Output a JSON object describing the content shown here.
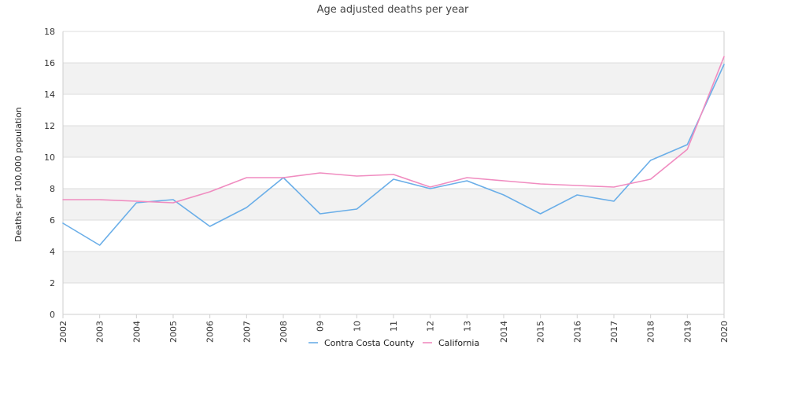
{
  "chart_data": {
    "type": "line",
    "title": "Age adjusted deaths per year",
    "ylabel": "Deaths per 100,000 population",
    "xlabel": "",
    "x": [
      "2002",
      "2003",
      "2004",
      "2005",
      "2006",
      "2007",
      "2008",
      "09",
      "10",
      "11",
      "12",
      "13",
      "2014",
      "2015",
      "2016",
      "2017",
      "2018",
      "2019",
      "2020"
    ],
    "ylim": [
      0,
      18
    ],
    "yticks": [
      0,
      2,
      4,
      6,
      8,
      10,
      12,
      14,
      16,
      18
    ],
    "grid": true,
    "legend_position": "bottom",
    "series": [
      {
        "name": "Contra Costa County",
        "color": "#6aaee8",
        "values": [
          5.8,
          4.4,
          7.1,
          7.3,
          5.6,
          6.8,
          8.7,
          6.4,
          6.7,
          8.6,
          8.0,
          8.5,
          7.6,
          6.4,
          7.6,
          7.2,
          9.8,
          10.8,
          15.9
        ]
      },
      {
        "name": "California",
        "color": "#f08cc0",
        "values": [
          7.3,
          7.3,
          7.2,
          7.1,
          7.8,
          8.7,
          8.7,
          9.0,
          8.8,
          8.9,
          8.1,
          8.7,
          8.5,
          8.3,
          8.2,
          8.1,
          8.6,
          10.5,
          16.4
        ]
      }
    ]
  }
}
